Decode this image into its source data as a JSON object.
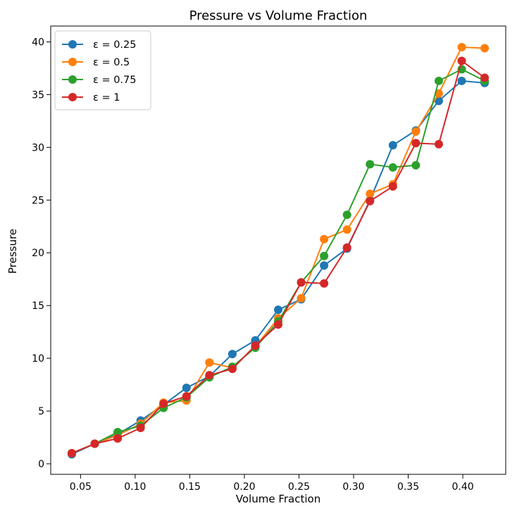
{
  "chart_data": {
    "type": "line",
    "title": "Pressure vs Volume Fraction",
    "xlabel": "Volume Fraction",
    "ylabel": "Pressure",
    "xlim": [
      0.0227,
      0.4393
    ],
    "ylim": [
      -1.0,
      41.5
    ],
    "xticks": [
      0.05,
      0.1,
      0.15,
      0.2,
      0.25,
      0.3,
      0.35,
      0.4
    ],
    "xtick_labels": [
      "0.05",
      "0.10",
      "0.15",
      "0.20",
      "0.25",
      "0.30",
      "0.35",
      "0.40"
    ],
    "yticks": [
      0,
      5,
      10,
      15,
      20,
      25,
      30,
      35,
      40
    ],
    "ytick_labels": [
      "0",
      "5",
      "10",
      "15",
      "20",
      "25",
      "30",
      "35",
      "40"
    ],
    "legend_position": "top-left",
    "grid": false,
    "x": [
      0.042,
      0.063,
      0.084,
      0.105,
      0.126,
      0.147,
      0.168,
      0.189,
      0.21,
      0.231,
      0.252,
      0.273,
      0.294,
      0.315,
      0.336,
      0.357,
      0.378,
      0.399,
      0.42
    ],
    "series": [
      {
        "name": "ε = 0.25",
        "color": "#1f77b4",
        "values": [
          0.9,
          1.9,
          2.8,
          4.1,
          5.6,
          7.2,
          8.3,
          10.4,
          11.7,
          14.6,
          15.6,
          18.8,
          20.4,
          25.0,
          30.2,
          31.6,
          34.4,
          36.3,
          36.1
        ]
      },
      {
        "name": "ε = 0.5",
        "color": "#ff7f0e",
        "values": [
          1.0,
          1.9,
          2.7,
          3.8,
          5.8,
          6.0,
          9.6,
          9.1,
          11.1,
          13.8,
          15.7,
          21.3,
          22.2,
          25.6,
          26.5,
          31.5,
          35.1,
          39.5,
          39.4
        ]
      },
      {
        "name": "ε = 0.75",
        "color": "#2ca02c",
        "values": [
          1.0,
          1.9,
          3.0,
          3.6,
          5.3,
          6.3,
          8.2,
          9.2,
          11.0,
          13.5,
          17.2,
          19.7,
          23.6,
          28.4,
          28.1,
          28.3,
          36.3,
          37.4,
          36.3
        ]
      },
      {
        "name": "ε = 1",
        "color": "#d62728",
        "values": [
          1.0,
          1.9,
          2.4,
          3.4,
          5.7,
          6.4,
          8.4,
          9.0,
          11.2,
          13.2,
          17.2,
          17.1,
          20.5,
          24.9,
          26.3,
          30.4,
          30.3,
          38.2,
          36.6
        ]
      }
    ]
  }
}
